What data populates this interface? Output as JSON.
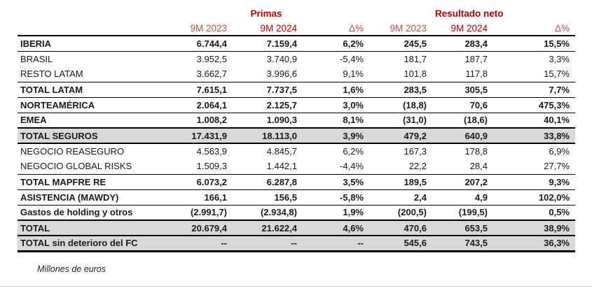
{
  "page": {
    "footnote": "Millones de euros"
  },
  "colors": {
    "accent_red": "#c00000",
    "muted_red": "#c0504d",
    "shaded_row": "#d9d9d9",
    "rule_black": "#000000",
    "text": "#1a1a1a",
    "footer_rule": "#c9c9c9"
  },
  "table": {
    "group_headers": [
      {
        "label": "Primas"
      },
      {
        "label": "Resultado neto"
      }
    ],
    "column_headers": [
      "9M 2023",
      "9M 2024",
      "Δ%",
      "9M 2023",
      "9M 2024",
      "Δ%"
    ],
    "rows": [
      {
        "label": "IBERIA",
        "bold": true,
        "shaded": false,
        "rule_below": "thin",
        "values": [
          "6.744,4",
          "7.159,4",
          "6,2%",
          "245,5",
          "283,4",
          "15,5%"
        ]
      },
      {
        "label": "BRASIL",
        "bold": false,
        "shaded": false,
        "rule_below": "none",
        "values": [
          "3.952,5",
          "3.740,9",
          "-5,4%",
          "181,7",
          "187,7",
          "3,3%"
        ]
      },
      {
        "label": "RESTO LATAM",
        "bold": false,
        "shaded": false,
        "rule_below": "thin",
        "values": [
          "3.662,7",
          "3.996,6",
          "9,1%",
          "101,8",
          "117,8",
          "15,7%"
        ]
      },
      {
        "label": "TOTAL LATAM",
        "bold": true,
        "shaded": false,
        "rule_below": "thin",
        "values": [
          "7.615,1",
          "7.737,5",
          "1,6%",
          "283,5",
          "305,5",
          "7,7%"
        ]
      },
      {
        "label": "NORTEAMÉRICA",
        "bold": true,
        "shaded": false,
        "rule_below": "thin",
        "values": [
          "2.064,1",
          "2.125,7",
          "3,0%",
          "(18,8)",
          "70,6",
          "475,3%"
        ]
      },
      {
        "label": "EMEA",
        "bold": true,
        "shaded": false,
        "rule_below": "medium",
        "values": [
          "1.008,2",
          "1.090,3",
          "8,1%",
          "(31,0)",
          "(18,6)",
          "40,1%"
        ]
      },
      {
        "label": "TOTAL SEGUROS",
        "bold": true,
        "shaded": true,
        "rule_below": "medium",
        "values": [
          "17.431,9",
          "18.113,0",
          "3,9%",
          "479,2",
          "640,9",
          "33,8%"
        ]
      },
      {
        "label": "NEGOCIO REASEGURO",
        "bold": false,
        "shaded": false,
        "rule_below": "none",
        "values": [
          "4.563,9",
          "4.845,7",
          "6,2%",
          "167,3",
          "178,8",
          "6,9%"
        ]
      },
      {
        "label": "NEGOCIO GLOBAL RISKS",
        "bold": false,
        "shaded": false,
        "rule_below": "thin",
        "values": [
          "1.509,3",
          "1.442,1",
          "-4,4%",
          "22,2",
          "28,4",
          "27,7%"
        ]
      },
      {
        "label": "TOTAL MAPFRE RE",
        "bold": true,
        "shaded": false,
        "rule_below": "thin",
        "values": [
          "6.073,2",
          "6.287,8",
          "3,5%",
          "189,5",
          "207,2",
          "9,3%"
        ]
      },
      {
        "label": "ASISTENCIA (MAWDY)",
        "bold": true,
        "shaded": false,
        "rule_below": "thin",
        "values": [
          "166,1",
          "156,5",
          "-5,8%",
          "2,4",
          "4,9",
          "102,0%"
        ]
      },
      {
        "label": "Gastos de holding y otros",
        "bold": true,
        "shaded": false,
        "rule_below": "medium",
        "values": [
          "(2.991,7)",
          "(2.934,8)",
          "1,9%",
          "(200,5)",
          "(199,5)",
          "0,5%"
        ]
      },
      {
        "label": "TOTAL",
        "bold": true,
        "shaded": true,
        "rule_below": "medium",
        "values": [
          "20.679,4",
          "21.622,4",
          "4,6%",
          "470,6",
          "653,5",
          "38,9%"
        ]
      },
      {
        "label": "TOTAL sin deterioro del FC",
        "bold": true,
        "shaded": true,
        "rule_below": "thick",
        "values": [
          "--",
          "--",
          "--",
          "545,6",
          "743,5",
          "36,3%"
        ]
      }
    ]
  }
}
